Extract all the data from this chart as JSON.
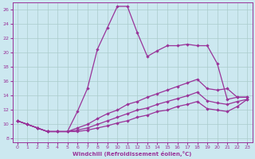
{
  "xlabel": "Windchill (Refroidissement éolien,°C)",
  "background_color": "#cce8f0",
  "grid_color": "#aacccc",
  "line_color": "#993399",
  "xlim": [
    -0.5,
    23.5
  ],
  "ylim": [
    7.5,
    27
  ],
  "xticks": [
    0,
    1,
    2,
    3,
    4,
    5,
    6,
    7,
    8,
    9,
    10,
    11,
    12,
    13,
    14,
    15,
    16,
    17,
    18,
    19,
    20,
    21,
    22,
    23
  ],
  "yticks": [
    8,
    10,
    12,
    14,
    16,
    18,
    20,
    22,
    24,
    26
  ],
  "line_peak_x": [
    0,
    1,
    2,
    3,
    4,
    5,
    6,
    7,
    8,
    9,
    10,
    11,
    12,
    13,
    14,
    15,
    16,
    17,
    18,
    19,
    20,
    21,
    22,
    23
  ],
  "line_peak_y": [
    10.5,
    10.0,
    9.5,
    9.0,
    9.0,
    9.0,
    11.8,
    15.0,
    20.5,
    23.5,
    26.5,
    26.5,
    22.8,
    19.5,
    20.3,
    21.0,
    21.0,
    21.2,
    21.0,
    21.0,
    18.5,
    13.5,
    13.8,
    13.8
  ],
  "line_mid_x": [
    0,
    1,
    2,
    3,
    4,
    5,
    6,
    7,
    8,
    9,
    10,
    11,
    12,
    13,
    14,
    15,
    16,
    17,
    18,
    19,
    20,
    21,
    22,
    23
  ],
  "line_mid_y": [
    10.5,
    10.0,
    9.5,
    9.0,
    9.0,
    9.0,
    9.5,
    10.0,
    10.8,
    11.5,
    12.0,
    12.8,
    13.2,
    13.8,
    14.3,
    14.8,
    15.3,
    15.8,
    16.3,
    15.0,
    14.8,
    15.0,
    13.8,
    13.8
  ],
  "line_low1_x": [
    0,
    1,
    2,
    3,
    4,
    5,
    6,
    7,
    8,
    9,
    10,
    11,
    12,
    13,
    14,
    15,
    16,
    17,
    18,
    19,
    20,
    21,
    22,
    23
  ],
  "line_low1_y": [
    10.5,
    10.0,
    9.5,
    9.0,
    9.0,
    9.0,
    9.2,
    9.5,
    10.0,
    10.5,
    11.0,
    11.5,
    12.0,
    12.3,
    12.8,
    13.2,
    13.6,
    14.0,
    14.5,
    13.3,
    13.0,
    12.8,
    13.2,
    13.5
  ],
  "line_low2_x": [
    0,
    1,
    2,
    3,
    4,
    5,
    6,
    7,
    8,
    9,
    10,
    11,
    12,
    13,
    14,
    15,
    16,
    17,
    18,
    19,
    20,
    21,
    22,
    23
  ],
  "line_low2_y": [
    10.5,
    10.0,
    9.5,
    9.0,
    9.0,
    9.0,
    9.0,
    9.2,
    9.5,
    9.8,
    10.2,
    10.5,
    11.0,
    11.3,
    11.8,
    12.0,
    12.5,
    12.8,
    13.2,
    12.2,
    12.0,
    11.8,
    12.5,
    13.5
  ]
}
